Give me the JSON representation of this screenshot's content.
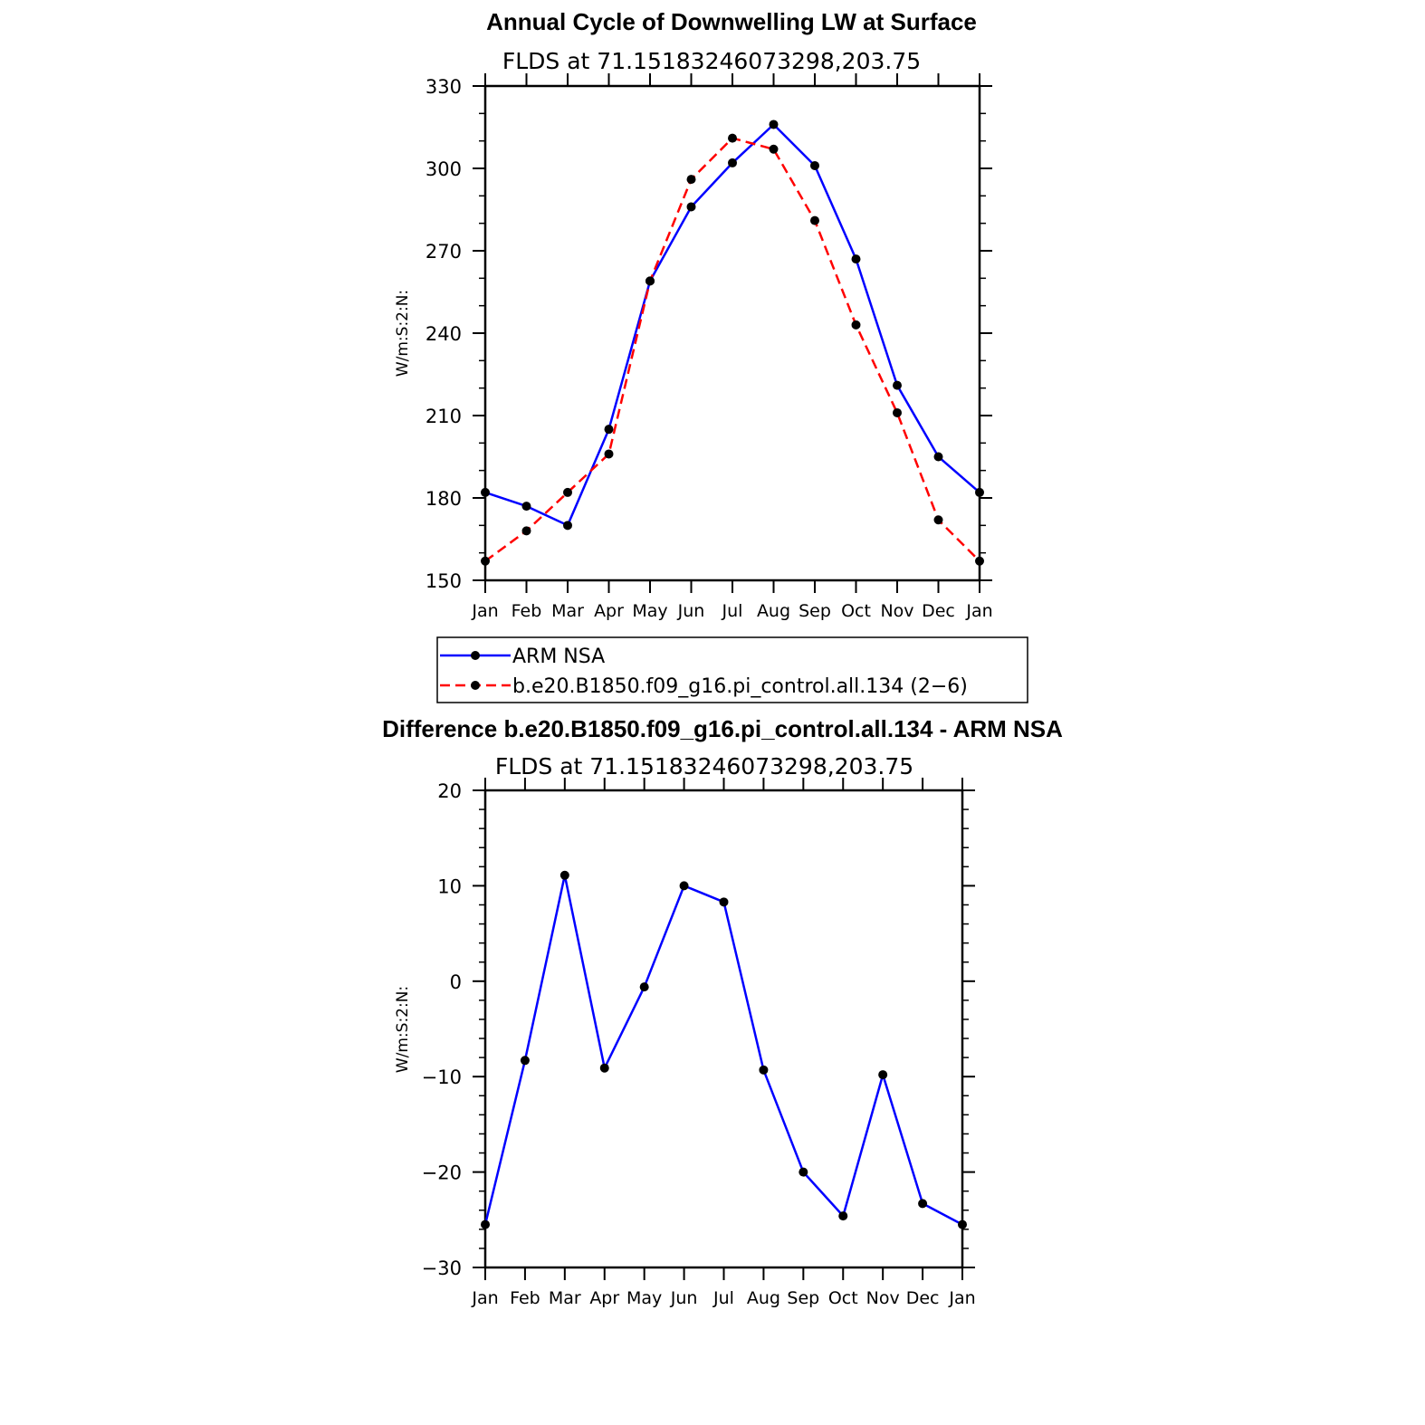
{
  "chart_data": [
    {
      "type": "line",
      "title": "Annual Cycle of Downwelling LW at Surface",
      "subtitle": "FLDS at 71.15183246073298,203.75",
      "xlabel": "",
      "ylabel": "W/m:S:2:N:",
      "categories": [
        "Jan",
        "Feb",
        "Mar",
        "Apr",
        "May",
        "Jun",
        "Jul",
        "Aug",
        "Sep",
        "Oct",
        "Nov",
        "Dec",
        "Jan"
      ],
      "ylim": [
        150,
        330
      ],
      "yticks": [
        150,
        180,
        210,
        240,
        270,
        300,
        330
      ],
      "ytick_labels": [
        "150",
        "180",
        "210",
        "240",
        "270",
        "300",
        "330"
      ],
      "minor_step": 10,
      "series": [
        {
          "name": "ARM NSA",
          "color": "#0000ff",
          "dash": "solid",
          "values": [
            182,
            177,
            170,
            205,
            259,
            286,
            302,
            316,
            301,
            267,
            221,
            195,
            182
          ]
        },
        {
          "name": "b.e20.B1850.f09_g16.pi_control.all.134 (2−6)",
          "color": "#ff0000",
          "dash": "dashed",
          "values": [
            157,
            168,
            182,
            196,
            259,
            296,
            311,
            307,
            281,
            243,
            211,
            172,
            157
          ]
        }
      ],
      "legend": {
        "placement": "below",
        "entries": [
          "ARM NSA",
          "b.e20.B1850.f09_g16.pi_control.all.134 (2−6)"
        ]
      }
    },
    {
      "type": "line",
      "title": "Difference b.e20.B1850.f09_g16.pi_control.all.134 - ARM NSA",
      "subtitle": "FLDS at 71.15183246073298,203.75",
      "xlabel": "",
      "ylabel": "W/m:S:2:N:",
      "categories": [
        "Jan",
        "Feb",
        "Mar",
        "Apr",
        "May",
        "Jun",
        "Jul",
        "Aug",
        "Sep",
        "Oct",
        "Nov",
        "Dec",
        "Jan"
      ],
      "ylim": [
        -30,
        20
      ],
      "yticks": [
        -30,
        -20,
        -10,
        0,
        10,
        20
      ],
      "ytick_labels": [
        "−30",
        "−20",
        "−10",
        "0",
        "10",
        "20"
      ],
      "minor_step": 2,
      "series": [
        {
          "name": "Difference",
          "color": "#0000ff",
          "dash": "solid",
          "values": [
            -25.5,
            -8.3,
            11.1,
            -9.1,
            -0.6,
            10.0,
            8.3,
            -9.3,
            -20.0,
            -24.6,
            -9.8,
            -23.3,
            -25.5
          ]
        }
      ]
    }
  ]
}
